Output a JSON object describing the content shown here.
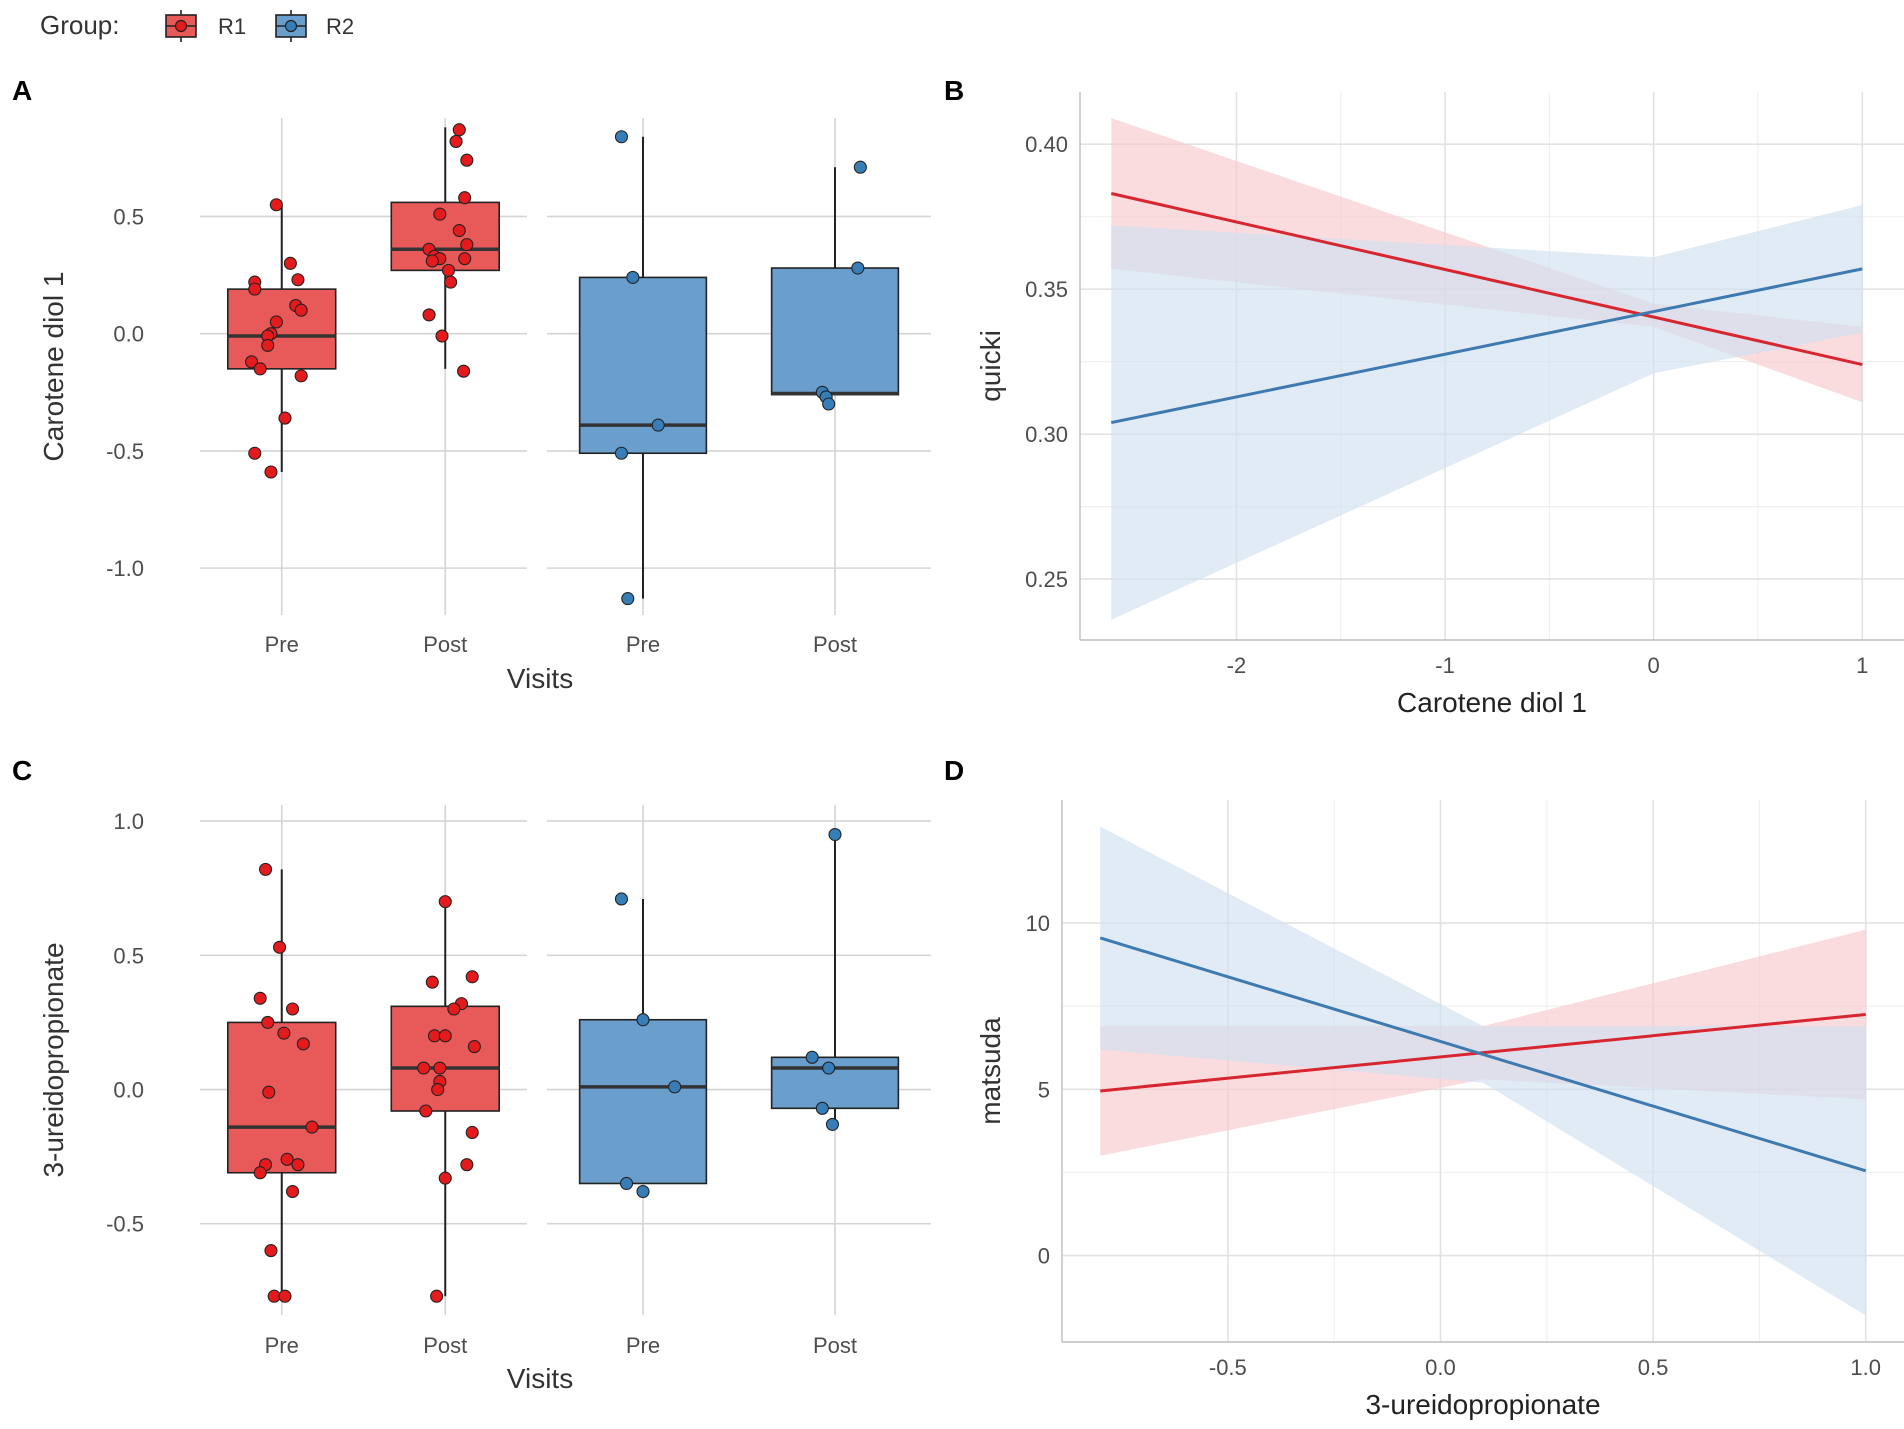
{
  "legend": {
    "title": "Group:",
    "items": [
      {
        "label": "R1",
        "color": "#E41A1C",
        "fill": "#E8595A"
      },
      {
        "label": "R2",
        "color": "#377EB8",
        "fill": "#6A9FCD"
      }
    ]
  },
  "chart_data": [
    {
      "panel": "A",
      "type": "box",
      "xlabel": "Visits",
      "ylabel": "Carotene diol 1",
      "ylim": [
        -1.2,
        0.92
      ],
      "yticks": [
        "-1.0",
        "-0.5",
        "0.0",
        "0.5"
      ],
      "ytick_values": [
        -1.0,
        -0.5,
        0.0,
        0.5
      ],
      "facets": [
        {
          "group": "R1",
          "categories": [
            "Pre",
            "Post"
          ],
          "boxes": [
            {
              "visit": "Pre",
              "q1": -0.15,
              "median": -0.01,
              "q3": 0.19,
              "whisker_low": -0.59,
              "whisker_high": 0.55,
              "points": [
                0.55,
                0.22,
                0.19,
                0.3,
                0.23,
                0.12,
                0.1,
                0.05,
                0.0,
                -0.01,
                -0.05,
                -0.12,
                -0.15,
                -0.18,
                -0.36,
                -0.51,
                -0.59
              ],
              "jitter": [
                -0.05,
                -0.25,
                -0.25,
                0.08,
                0.15,
                0.13,
                0.18,
                -0.05,
                -0.1,
                -0.13,
                -0.13,
                -0.28,
                -0.2,
                0.18,
                0.03,
                -0.25,
                -0.1
              ]
            },
            {
              "visit": "Post",
              "q1": 0.27,
              "median": 0.36,
              "q3": 0.56,
              "whisker_low": -0.15,
              "whisker_high": 0.88,
              "points": [
                0.87,
                0.82,
                0.74,
                0.58,
                0.51,
                0.44,
                0.38,
                0.36,
                0.33,
                0.32,
                0.32,
                0.31,
                0.27,
                0.22,
                0.08,
                -0.01,
                -0.16
              ],
              "jitter": [
                0.13,
                0.1,
                0.2,
                0.18,
                -0.05,
                0.13,
                0.2,
                -0.15,
                -0.1,
                -0.05,
                0.18,
                -0.12,
                0.03,
                0.05,
                -0.15,
                -0.03,
                0.17
              ]
            }
          ]
        },
        {
          "group": "R2",
          "categories": [
            "Pre",
            "Post"
          ],
          "boxes": [
            {
              "visit": "Pre",
              "q1": -0.51,
              "median": -0.39,
              "q3": 0.24,
              "whisker_low": -1.13,
              "whisker_high": 0.84,
              "points": [
                0.84,
                0.24,
                -0.39,
                -0.51,
                -1.13
              ],
              "jitter": [
                -0.17,
                -0.08,
                0.12,
                -0.17,
                -0.12
              ]
            },
            {
              "visit": "Post",
              "q1": -0.26,
              "median": -0.255,
              "q3": 0.28,
              "whisker_low": -0.26,
              "whisker_high": 0.71,
              "points": [
                0.71,
                0.28,
                -0.25,
                -0.27,
                -0.3
              ],
              "jitter": [
                0.2,
                0.18,
                -0.1,
                -0.07,
                -0.05
              ]
            }
          ]
        }
      ]
    },
    {
      "panel": "B",
      "type": "line",
      "xlabel": "Carotene diol 1",
      "ylabel": "quicki",
      "xlim": [
        -2.75,
        1.2
      ],
      "ylim": [
        0.229,
        0.418
      ],
      "xticks": [
        "-2",
        "-1",
        "0",
        "1"
      ],
      "xtick_values": [
        -2,
        -1,
        0,
        1
      ],
      "yticks": [
        "0.25",
        "0.30",
        "0.35",
        "0.40"
      ],
      "ytick_values": [
        0.25,
        0.3,
        0.35,
        0.4
      ],
      "series": [
        {
          "name": "R1",
          "x": [
            -2.6,
            0.0,
            1.0
          ],
          "y": [
            0.383,
            0.341,
            0.324
          ],
          "lower": [
            0.357,
            0.337,
            0.311
          ],
          "upper": [
            0.409,
            0.345,
            0.337
          ]
        },
        {
          "name": "R2",
          "x": [
            -2.6,
            0.0,
            1.0
          ],
          "y": [
            0.304,
            0.341,
            0.357
          ],
          "lower": [
            0.236,
            0.321,
            0.335
          ],
          "upper": [
            0.372,
            0.361,
            0.379
          ]
        }
      ]
    },
    {
      "panel": "C",
      "type": "box",
      "xlabel": "Visits",
      "ylabel": "3-ureidopropionate",
      "ylim": [
        -0.84,
        1.06
      ],
      "yticks": [
        "-0.5",
        "0.0",
        "0.5",
        "1.0"
      ],
      "ytick_values": [
        -0.5,
        0.0,
        0.5,
        1.0
      ],
      "facets": [
        {
          "group": "R1",
          "categories": [
            "Pre",
            "Post"
          ],
          "boxes": [
            {
              "visit": "Pre",
              "q1": -0.31,
              "median": -0.14,
              "q3": 0.25,
              "whisker_low": -0.77,
              "whisker_high": 0.82,
              "points": [
                0.82,
                0.53,
                0.34,
                0.3,
                0.25,
                0.21,
                0.17,
                -0.01,
                -0.14,
                -0.26,
                -0.28,
                -0.28,
                -0.31,
                -0.38,
                -0.6,
                -0.77,
                -0.77
              ],
              "jitter": [
                -0.15,
                -0.02,
                -0.2,
                0.1,
                -0.13,
                0.02,
                0.2,
                -0.12,
                0.28,
                0.05,
                -0.15,
                0.15,
                -0.2,
                0.1,
                -0.1,
                -0.07,
                0.03
              ]
            },
            {
              "visit": "Post",
              "q1": -0.08,
              "median": 0.08,
              "q3": 0.31,
              "whisker_low": -0.77,
              "whisker_high": 0.7,
              "points": [
                0.7,
                0.42,
                0.4,
                0.32,
                0.3,
                0.2,
                0.2,
                0.16,
                0.08,
                0.08,
                0.03,
                0.0,
                -0.08,
                -0.16,
                -0.28,
                -0.33,
                -0.77
              ],
              "jitter": [
                0.0,
                0.25,
                -0.12,
                0.15,
                0.08,
                -0.1,
                0.0,
                0.27,
                -0.2,
                -0.05,
                -0.05,
                -0.07,
                -0.18,
                0.25,
                0.2,
                0.0,
                -0.08
              ]
            }
          ]
        },
        {
          "group": "R2",
          "categories": [
            "Pre",
            "Post"
          ],
          "boxes": [
            {
              "visit": "Pre",
              "q1": -0.35,
              "median": 0.01,
              "q3": 0.26,
              "whisker_low": -0.35,
              "whisker_high": 0.71,
              "points": [
                0.71,
                0.26,
                0.01,
                -0.35,
                -0.38
              ],
              "jitter": [
                -0.17,
                0.0,
                0.25,
                -0.13,
                0.0
              ]
            },
            {
              "visit": "Post",
              "q1": -0.07,
              "median": 0.08,
              "q3": 0.12,
              "whisker_low": -0.13,
              "whisker_high": 0.95,
              "points": [
                0.95,
                0.12,
                0.08,
                -0.07,
                -0.13
              ],
              "jitter": [
                0.0,
                -0.18,
                -0.05,
                -0.1,
                -0.02
              ]
            }
          ]
        }
      ]
    },
    {
      "panel": "D",
      "type": "line",
      "xlabel": "3-ureidopropionate",
      "ylabel": "matsuda",
      "xlim": [
        -0.89,
        1.09
      ],
      "ylim": [
        -2.6,
        13.7
      ],
      "xticks": [
        "-0.5",
        "0.0",
        "0.5",
        "1.0"
      ],
      "xtick_values": [
        -0.5,
        0.0,
        0.5,
        1.0
      ],
      "yticks": [
        "0",
        "5",
        "10"
      ],
      "ytick_values": [
        0,
        5,
        10
      ],
      "series": [
        {
          "name": "R1",
          "x": [
            -0.8,
            0.1,
            1.0
          ],
          "y": [
            4.95,
            6.1,
            7.25
          ],
          "lower": [
            3.0,
            5.3,
            4.7
          ],
          "upper": [
            6.9,
            6.9,
            9.8
          ]
        },
        {
          "name": "R2",
          "x": [
            -0.8,
            0.1,
            1.0
          ],
          "y": [
            9.55,
            6.05,
            2.55
          ],
          "lower": [
            6.2,
            5.2,
            -1.8
          ],
          "upper": [
            12.9,
            6.9,
            6.9
          ]
        }
      ]
    }
  ]
}
